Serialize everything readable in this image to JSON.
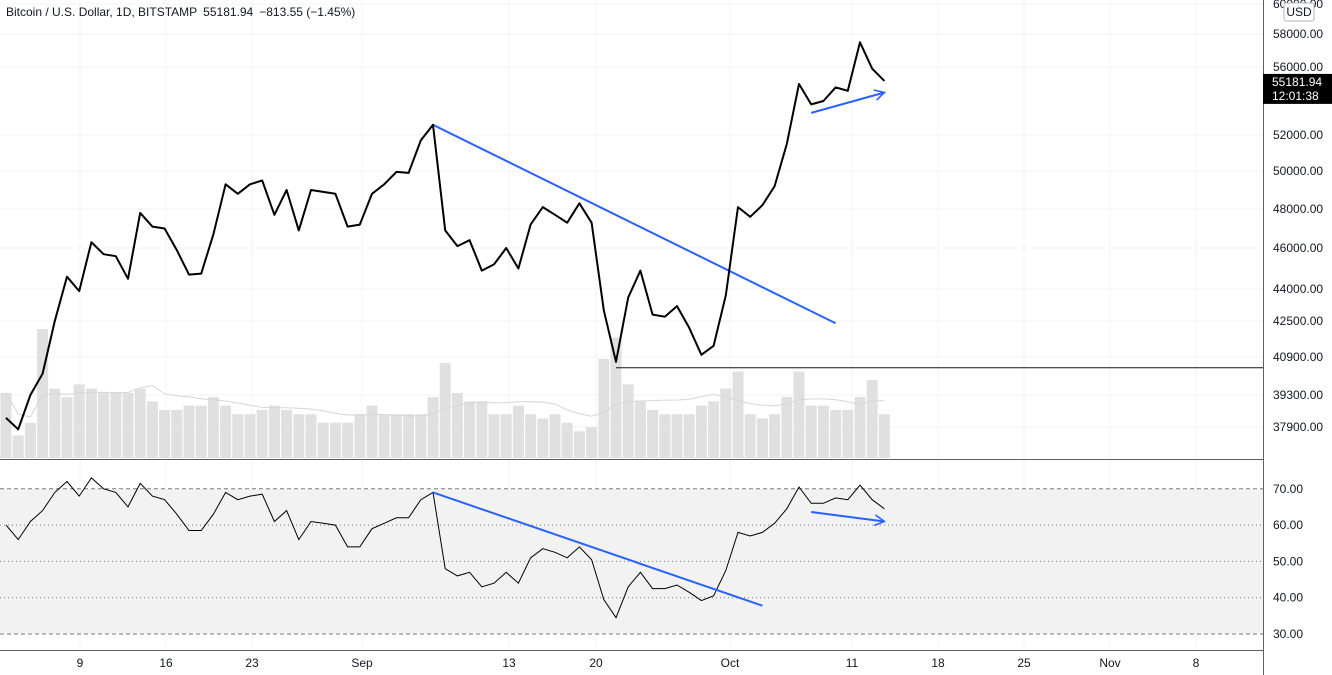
{
  "legend": {
    "symbol": "Bitcoin / U.S. Dollar, 1D, BITSTAMP",
    "last": "55181.94",
    "change": "−813.55 (−1.45%)"
  },
  "currency_badge": "USD",
  "price_tag": {
    "price": "55181.94",
    "countdown": "12:01:38"
  },
  "colors": {
    "price_line": "#000000",
    "trendline": "#2962ff",
    "volume": "#e0e0e0",
    "rsi_band": "#f2f2f2"
  },
  "chart_data": {
    "type": "line",
    "x_axis_labels": [
      "9",
      "16",
      "23",
      "Sep",
      "13",
      "20",
      "Oct",
      "11",
      "18",
      "25",
      "Nov",
      "8"
    ],
    "price_axis_ticks": [
      "60000.00",
      "58000.00",
      "56000.00",
      "52000.00",
      "50000.00",
      "48000.00",
      "46000.00",
      "44000.00",
      "42500.00",
      "40900.00",
      "39300.00",
      "37900.00"
    ],
    "rsi_axis_ticks": [
      "70.00",
      "60.00",
      "50.00",
      "40.00",
      "30.00"
    ],
    "price_series": [
      {
        "t": 0,
        "v": 38300
      },
      {
        "t": 1,
        "v": 37800
      },
      {
        "t": 2,
        "v": 39300
      },
      {
        "t": 3,
        "v": 40200
      },
      {
        "t": 4,
        "v": 42500
      },
      {
        "t": 5,
        "v": 44600
      },
      {
        "t": 6,
        "v": 43900
      },
      {
        "t": 7,
        "v": 46300
      },
      {
        "t": 8,
        "v": 45700
      },
      {
        "t": 9,
        "v": 45600
      },
      {
        "t": 10,
        "v": 44500
      },
      {
        "t": 11,
        "v": 47800
      },
      {
        "t": 12,
        "v": 47100
      },
      {
        "t": 13,
        "v": 47000
      },
      {
        "t": 14,
        "v": 45900
      },
      {
        "t": 15,
        "v": 44700
      },
      {
        "t": 16,
        "v": 44750
      },
      {
        "t": 17,
        "v": 46700
      },
      {
        "t": 18,
        "v": 49300
      },
      {
        "t": 19,
        "v": 48800
      },
      {
        "t": 20,
        "v": 49300
      },
      {
        "t": 21,
        "v": 49500
      },
      {
        "t": 22,
        "v": 47700
      },
      {
        "t": 23,
        "v": 49000
      },
      {
        "t": 24,
        "v": 46900
      },
      {
        "t": 25,
        "v": 49000
      },
      {
        "t": 26,
        "v": 48900
      },
      {
        "t": 27,
        "v": 48800
      },
      {
        "t": 28,
        "v": 47100
      },
      {
        "t": 29,
        "v": 47200
      },
      {
        "t": 30,
        "v": 48800
      },
      {
        "t": 31,
        "v": 49300
      },
      {
        "t": 32,
        "v": 49950
      },
      {
        "t": 33,
        "v": 49900
      },
      {
        "t": 34,
        "v": 51700
      },
      {
        "t": 35,
        "v": 52600
      },
      {
        "t": 36,
        "v": 46900
      },
      {
        "t": 37,
        "v": 46100
      },
      {
        "t": 38,
        "v": 46400
      },
      {
        "t": 39,
        "v": 44900
      },
      {
        "t": 40,
        "v": 45200
      },
      {
        "t": 41,
        "v": 46000
      },
      {
        "t": 42,
        "v": 45000
      },
      {
        "t": 43,
        "v": 47200
      },
      {
        "t": 44,
        "v": 48100
      },
      {
        "t": 45,
        "v": 47700
      },
      {
        "t": 46,
        "v": 47300
      },
      {
        "t": 47,
        "v": 48300
      },
      {
        "t": 48,
        "v": 47300
      },
      {
        "t": 49,
        "v": 43000
      },
      {
        "t": 50,
        "v": 40700
      },
      {
        "t": 51,
        "v": 43600
      },
      {
        "t": 52,
        "v": 44900
      },
      {
        "t": 53,
        "v": 42800
      },
      {
        "t": 54,
        "v": 42700
      },
      {
        "t": 55,
        "v": 43200
      },
      {
        "t": 56,
        "v": 42200
      },
      {
        "t": 57,
        "v": 41000
      },
      {
        "t": 58,
        "v": 41400
      },
      {
        "t": 59,
        "v": 43700
      },
      {
        "t": 60,
        "v": 48100
      },
      {
        "t": 61,
        "v": 47600
      },
      {
        "t": 62,
        "v": 48200
      },
      {
        "t": 63,
        "v": 49200
      },
      {
        "t": 64,
        "v": 51500
      },
      {
        "t": 65,
        "v": 55000
      },
      {
        "t": 66,
        "v": 53800
      },
      {
        "t": 67,
        "v": 54000
      },
      {
        "t": 68,
        "v": 54800
      },
      {
        "t": 69,
        "v": 54600
      },
      {
        "t": 70,
        "v": 57500
      },
      {
        "t": 71,
        "v": 55900
      },
      {
        "t": 72,
        "v": 55181.94
      }
    ],
    "volume_series": [
      0.45,
      0.35,
      0.38,
      0.6,
      0.46,
      0.44,
      0.47,
      0.46,
      0.45,
      0.45,
      0.45,
      0.46,
      0.43,
      0.41,
      0.41,
      0.42,
      0.42,
      0.44,
      0.42,
      0.4,
      0.4,
      0.41,
      0.42,
      0.41,
      0.4,
      0.4,
      0.38,
      0.38,
      0.38,
      0.4,
      0.42,
      0.4,
      0.4,
      0.4,
      0.4,
      0.44,
      0.52,
      0.45,
      0.43,
      0.43,
      0.4,
      0.4,
      0.42,
      0.4,
      0.39,
      0.4,
      0.38,
      0.36,
      0.37,
      0.53,
      0.58,
      0.47,
      0.43,
      0.41,
      0.4,
      0.4,
      0.4,
      0.42,
      0.43,
      0.46,
      0.5,
      0.4,
      0.39,
      0.4,
      0.44,
      0.5,
      0.42,
      0.42,
      0.41,
      0.41,
      0.44,
      0.48,
      0.4
    ],
    "rsi_series": [
      {
        "t": 0,
        "v": 60
      },
      {
        "t": 1,
        "v": 56
      },
      {
        "t": 2,
        "v": 61
      },
      {
        "t": 3,
        "v": 64
      },
      {
        "t": 4,
        "v": 69
      },
      {
        "t": 5,
        "v": 72
      },
      {
        "t": 6,
        "v": 68
      },
      {
        "t": 7,
        "v": 73
      },
      {
        "t": 8,
        "v": 70
      },
      {
        "t": 9,
        "v": 69
      },
      {
        "t": 10,
        "v": 65
      },
      {
        "t": 11,
        "v": 71.5
      },
      {
        "t": 12,
        "v": 68
      },
      {
        "t": 13,
        "v": 67
      },
      {
        "t": 14,
        "v": 63
      },
      {
        "t": 15,
        "v": 58.5
      },
      {
        "t": 16,
        "v": 58.5
      },
      {
        "t": 17,
        "v": 63
      },
      {
        "t": 18,
        "v": 69
      },
      {
        "t": 19,
        "v": 67
      },
      {
        "t": 20,
        "v": 68
      },
      {
        "t": 21,
        "v": 68.5
      },
      {
        "t": 22,
        "v": 61
      },
      {
        "t": 23,
        "v": 64
      },
      {
        "t": 24,
        "v": 56
      },
      {
        "t": 25,
        "v": 61
      },
      {
        "t": 26,
        "v": 60.5
      },
      {
        "t": 27,
        "v": 60
      },
      {
        "t": 28,
        "v": 54
      },
      {
        "t": 29,
        "v": 54
      },
      {
        "t": 30,
        "v": 59
      },
      {
        "t": 31,
        "v": 60.5
      },
      {
        "t": 32,
        "v": 62
      },
      {
        "t": 33,
        "v": 62
      },
      {
        "t": 34,
        "v": 67
      },
      {
        "t": 35,
        "v": 69
      },
      {
        "t": 36,
        "v": 48
      },
      {
        "t": 37,
        "v": 46
      },
      {
        "t": 38,
        "v": 47
      },
      {
        "t": 39,
        "v": 43
      },
      {
        "t": 40,
        "v": 44
      },
      {
        "t": 41,
        "v": 47
      },
      {
        "t": 42,
        "v": 44
      },
      {
        "t": 43,
        "v": 51
      },
      {
        "t": 44,
        "v": 53.5
      },
      {
        "t": 45,
        "v": 52.5
      },
      {
        "t": 46,
        "v": 51
      },
      {
        "t": 47,
        "v": 54
      },
      {
        "t": 48,
        "v": 50.5
      },
      {
        "t": 49,
        "v": 39.5
      },
      {
        "t": 50,
        "v": 34.5
      },
      {
        "t": 51,
        "v": 43
      },
      {
        "t": 52,
        "v": 47
      },
      {
        "t": 53,
        "v": 42.5
      },
      {
        "t": 54,
        "v": 42.5
      },
      {
        "t": 55,
        "v": 43.5
      },
      {
        "t": 56,
        "v": 41.5
      },
      {
        "t": 57,
        "v": 39.2
      },
      {
        "t": 58,
        "v": 40.5
      },
      {
        "t": 59,
        "v": 47.5
      },
      {
        "t": 60,
        "v": 58
      },
      {
        "t": 61,
        "v": 57
      },
      {
        "t": 62,
        "v": 58
      },
      {
        "t": 63,
        "v": 60.5
      },
      {
        "t": 64,
        "v": 64.5
      },
      {
        "t": 65,
        "v": 70.5
      },
      {
        "t": 66,
        "v": 66
      },
      {
        "t": 67,
        "v": 66
      },
      {
        "t": 68,
        "v": 67.5
      },
      {
        "t": 69,
        "v": 67
      },
      {
        "t": 70,
        "v": 71
      },
      {
        "t": 71,
        "v": 67
      },
      {
        "t": 72,
        "v": 64.5
      }
    ],
    "price_trendline": {
      "t1": 35,
      "v1": 52600,
      "t2": 68,
      "v2": 42400
    },
    "price_arrow": {
      "t1": 66,
      "v1": 53300,
      "t2": 72,
      "v2": 54500
    },
    "support_line": {
      "t1": 50,
      "v": 40700
    },
    "rsi_trendline": {
      "t1": 35,
      "v1": 69,
      "t2": 62,
      "v2": 37.8
    },
    "rsi_arrow": {
      "t1": 66,
      "v1": 63.6,
      "t2": 72,
      "v2": 61
    },
    "rsi_band": [
      30,
      70
    ],
    "rsi_levels": [
      70,
      60,
      50,
      40,
      30
    ]
  }
}
